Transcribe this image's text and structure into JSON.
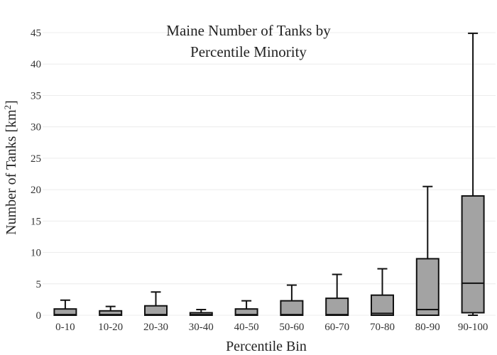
{
  "chart_data": {
    "type": "box",
    "title_lines": [
      "Maine Number of Tanks by",
      "Percentile Minority"
    ],
    "xlabel": "Percentile Bin",
    "ylabel_main": "Number of Tanks  [km",
    "ylabel_sup": "2",
    "ylabel_close": "]",
    "ylim": [
      0,
      45
    ],
    "yticks": [
      0,
      5,
      10,
      15,
      20,
      25,
      30,
      35,
      40,
      45
    ],
    "grid": true,
    "box_color": "#a3a3a3",
    "line_color": "#111111",
    "categories": [
      "0-10",
      "10-20",
      "20-30",
      "30-40",
      "40-50",
      "50-60",
      "60-70",
      "70-80",
      "80-90",
      "90-100"
    ],
    "boxes": [
      {
        "min": 0,
        "q1": 0,
        "median": 0.1,
        "q3": 1.0,
        "max": 2.4
      },
      {
        "min": 0,
        "q1": 0,
        "median": 0.1,
        "q3": 0.7,
        "max": 1.4
      },
      {
        "min": 0,
        "q1": 0,
        "median": 0.1,
        "q3": 1.5,
        "max": 3.7
      },
      {
        "min": 0,
        "q1": 0,
        "median": 0.1,
        "q3": 0.4,
        "max": 0.9
      },
      {
        "min": 0,
        "q1": 0,
        "median": 0.1,
        "q3": 1.0,
        "max": 2.3
      },
      {
        "min": 0,
        "q1": 0,
        "median": 0.1,
        "q3": 2.3,
        "max": 4.8
      },
      {
        "min": 0,
        "q1": 0,
        "median": 0.1,
        "q3": 2.7,
        "max": 6.5
      },
      {
        "min": 0,
        "q1": 0,
        "median": 0.3,
        "q3": 3.2,
        "max": 7.4
      },
      {
        "min": 0,
        "q1": 0,
        "median": 0.9,
        "q3": 9.0,
        "max": 20.5
      },
      {
        "min": 0,
        "q1": 0.4,
        "median": 5.1,
        "q3": 19.0,
        "max": 44.9
      }
    ]
  }
}
